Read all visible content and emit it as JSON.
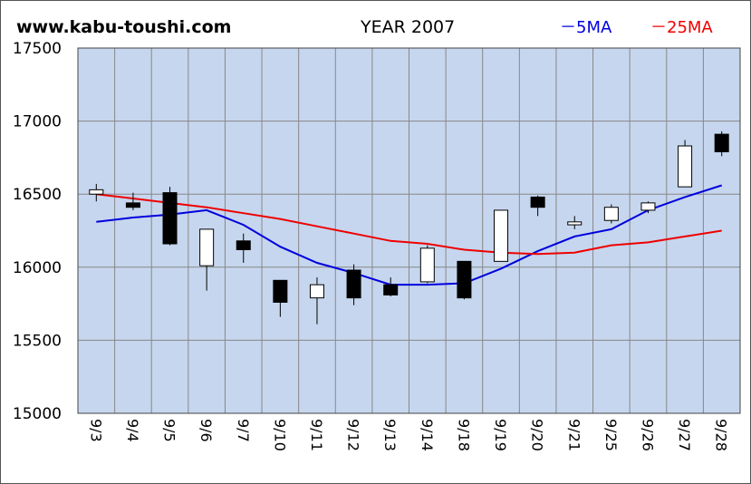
{
  "header": {
    "site": "www.kabu-toushi.com",
    "title": "YEAR 2007"
  },
  "chart_data": {
    "type": "candlestick",
    "categories": [
      "9/3",
      "9/4",
      "9/5",
      "9/6",
      "9/7",
      "9/10",
      "9/11",
      "9/12",
      "9/13",
      "9/14",
      "9/18",
      "9/19",
      "9/20",
      "9/21",
      "9/25",
      "9/26",
      "9/27",
      "9/28"
    ],
    "ohlc": [
      {
        "open": 16500,
        "high": 16570,
        "low": 16450,
        "close": 16530
      },
      {
        "open": 16440,
        "high": 16510,
        "low": 16390,
        "close": 16410
      },
      {
        "open": 16510,
        "high": 16550,
        "low": 16150,
        "close": 16160
      },
      {
        "open": 16010,
        "high": 16260,
        "low": 15840,
        "close": 16260
      },
      {
        "open": 16180,
        "high": 16230,
        "low": 16030,
        "close": 16120
      },
      {
        "open": 15910,
        "high": 15910,
        "low": 15660,
        "close": 15760
      },
      {
        "open": 15790,
        "high": 15930,
        "low": 15610,
        "close": 15880
      },
      {
        "open": 15980,
        "high": 16020,
        "low": 15740,
        "close": 15790
      },
      {
        "open": 15880,
        "high": 15930,
        "low": 15800,
        "close": 15810
      },
      {
        "open": 15900,
        "high": 16150,
        "low": 15890,
        "close": 16130
      },
      {
        "open": 16040,
        "high": 16040,
        "low": 15780,
        "close": 15790
      },
      {
        "open": 16040,
        "high": 16390,
        "low": 16040,
        "close": 16390
      },
      {
        "open": 16480,
        "high": 16490,
        "low": 16350,
        "close": 16410
      },
      {
        "open": 16290,
        "high": 16350,
        "low": 16260,
        "close": 16310
      },
      {
        "open": 16320,
        "high": 16430,
        "low": 16300,
        "close": 16410
      },
      {
        "open": 16390,
        "high": 16450,
        "low": 16370,
        "close": 16440
      },
      {
        "open": 16550,
        "high": 16870,
        "low": 16550,
        "close": 16830
      },
      {
        "open": 16910,
        "high": 16930,
        "low": 16760,
        "close": 16790
      }
    ],
    "series": [
      {
        "name": "5MA",
        "color": "#0000dd",
        "values": [
          16310,
          16340,
          16360,
          16390,
          16290,
          16140,
          16030,
          15960,
          15880,
          15880,
          15890,
          15990,
          16110,
          16210,
          16260,
          16390,
          16480,
          16560
        ]
      },
      {
        "name": "25MA",
        "color": "#ee0000",
        "values": [
          16500,
          16470,
          16440,
          16410,
          16370,
          16330,
          16280,
          16230,
          16180,
          16160,
          16120,
          16100,
          16090,
          16100,
          16150,
          16170,
          16210,
          16250
        ]
      }
    ],
    "legend": [
      {
        "label": "－5MA",
        "color": "#0000dd"
      },
      {
        "label": "－25MA",
        "color": "#ee0000"
      }
    ],
    "ylim": [
      15000,
      17500
    ],
    "yticks": [
      15000,
      15500,
      16000,
      16500,
      17000,
      17500
    ],
    "grid": true,
    "legend_position": "top-right",
    "colors": {
      "plot_background": "#c6d6ee",
      "up_candle": "#ffffff",
      "down_candle": "#000000"
    }
  }
}
